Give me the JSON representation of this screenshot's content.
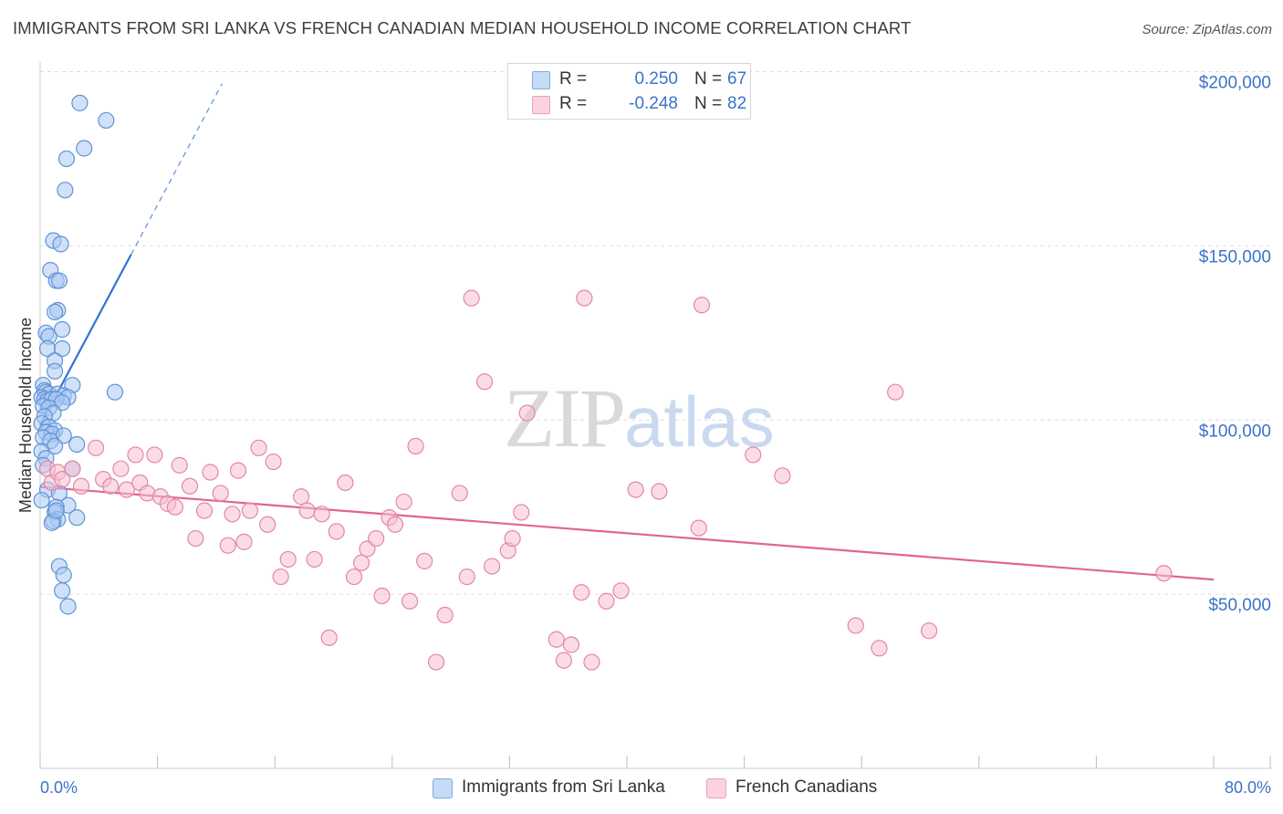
{
  "title": "IMMIGRANTS FROM SRI LANKA VS FRENCH CANADIAN MEDIAN HOUSEHOLD INCOME CORRELATION CHART",
  "source": "Source: ZipAtlas.com",
  "watermark": {
    "zip": "ZIP",
    "atlas": "atlas"
  },
  "legend": {
    "r_label": "R =",
    "n_label": "N =",
    "series": [
      {
        "name": "Immigrants from Sri Lanka",
        "r": "0.250",
        "n": "67",
        "fill": "#a9c9f2",
        "stroke": "#5f93d6"
      },
      {
        "name": "French Canadians",
        "r": "-0.248",
        "n": "82",
        "fill": "#f7bfd1",
        "stroke": "#e386a6"
      }
    ]
  },
  "chart_data": {
    "type": "scatter",
    "title": "IMMIGRANTS FROM SRI LANKA VS FRENCH CANADIAN MEDIAN HOUSEHOLD INCOME CORRELATION CHART",
    "xlabel": "",
    "ylabel": "Median Household Income",
    "xlim": [
      0,
      80
    ],
    "ylim": [
      0,
      210000
    ],
    "x_tick_labels": [
      "0.0%",
      "80.0%"
    ],
    "y_ticks": [
      {
        "value": 50000,
        "label": "$50,000"
      },
      {
        "value": 100000,
        "label": "$100,000"
      },
      {
        "value": 150000,
        "label": "$150,000"
      },
      {
        "value": 200000,
        "label": "$200,000"
      }
    ],
    "series": [
      {
        "name": "Immigrants from Sri Lanka",
        "color": "#5f93d6",
        "fill": "#a9c9f2",
        "trend": {
          "x0": 0,
          "y0": 98500,
          "x1": 6.2,
          "y1": 147500,
          "dash_to_x": 12.4,
          "dash_to_y": 196500,
          "color": "#2f74d0"
        },
        "points": [
          [
            2.7,
            191000
          ],
          [
            4.5,
            186000
          ],
          [
            3.0,
            178000
          ],
          [
            1.8,
            175000
          ],
          [
            1.7,
            166000
          ],
          [
            0.9,
            151500
          ],
          [
            1.4,
            150500
          ],
          [
            0.7,
            143000
          ],
          [
            1.1,
            140000
          ],
          [
            1.3,
            140000
          ],
          [
            1.2,
            131500
          ],
          [
            1.0,
            131000
          ],
          [
            1.5,
            126000
          ],
          [
            0.4,
            125000
          ],
          [
            0.6,
            124000
          ],
          [
            0.5,
            120500
          ],
          [
            1.5,
            120500
          ],
          [
            1.0,
            117000
          ],
          [
            1.0,
            114000
          ],
          [
            0.2,
            110000
          ],
          [
            2.2,
            110000
          ],
          [
            0.3,
            108500
          ],
          [
            0.4,
            108000
          ],
          [
            0.6,
            107500
          ],
          [
            1.2,
            107500
          ],
          [
            1.6,
            107000
          ],
          [
            1.9,
            106500
          ],
          [
            5.1,
            108000
          ],
          [
            0.1,
            106500
          ],
          [
            0.3,
            106000
          ],
          [
            0.5,
            105500
          ],
          [
            0.8,
            106000
          ],
          [
            1.1,
            106000
          ],
          [
            1.5,
            105000
          ],
          [
            0.2,
            104000
          ],
          [
            0.6,
            103500
          ],
          [
            0.9,
            102000
          ],
          [
            0.3,
            101000
          ],
          [
            0.1,
            99000
          ],
          [
            0.6,
            98000
          ],
          [
            1.0,
            97000
          ],
          [
            0.4,
            96500
          ],
          [
            0.8,
            96000
          ],
          [
            0.2,
            95000
          ],
          [
            1.6,
            95500
          ],
          [
            0.7,
            94000
          ],
          [
            1.0,
            92500
          ],
          [
            2.5,
            93000
          ],
          [
            0.1,
            91000
          ],
          [
            0.4,
            89000
          ],
          [
            0.2,
            87000
          ],
          [
            2.2,
            86000
          ],
          [
            0.5,
            80000
          ],
          [
            1.3,
            79000
          ],
          [
            0.1,
            77000
          ],
          [
            1.9,
            75500
          ],
          [
            1.1,
            75000
          ],
          [
            1.0,
            73500
          ],
          [
            2.5,
            72000
          ],
          [
            1.2,
            71500
          ],
          [
            0.9,
            71000
          ],
          [
            1.3,
            58000
          ],
          [
            1.6,
            55500
          ],
          [
            1.5,
            51000
          ],
          [
            1.9,
            46500
          ],
          [
            0.8,
            70500
          ],
          [
            1.1,
            74000
          ]
        ]
      },
      {
        "name": "French Canadians",
        "color": "#e386a6",
        "fill": "#f7bfd1",
        "trend": {
          "x0": 0,
          "y0": 80800,
          "x1": 80,
          "y1": 54200,
          "color": "#e06494"
        },
        "points": [
          [
            0.5,
            86000
          ],
          [
            0.8,
            82000
          ],
          [
            1.2,
            85000
          ],
          [
            1.5,
            83000
          ],
          [
            2.2,
            86000
          ],
          [
            2.8,
            81000
          ],
          [
            3.8,
            92000
          ],
          [
            4.3,
            83000
          ],
          [
            4.8,
            81000
          ],
          [
            5.5,
            86000
          ],
          [
            5.9,
            80000
          ],
          [
            6.5,
            90000
          ],
          [
            6.8,
            82000
          ],
          [
            7.3,
            79000
          ],
          [
            7.8,
            90000
          ],
          [
            8.2,
            78000
          ],
          [
            8.7,
            76000
          ],
          [
            9.2,
            75000
          ],
          [
            9.5,
            87000
          ],
          [
            10.2,
            81000
          ],
          [
            10.6,
            66000
          ],
          [
            11.2,
            74000
          ],
          [
            11.6,
            85000
          ],
          [
            12.3,
            79000
          ],
          [
            12.8,
            64000
          ],
          [
            13.1,
            73000
          ],
          [
            13.5,
            85500
          ],
          [
            13.9,
            65000
          ],
          [
            14.3,
            74000
          ],
          [
            14.9,
            92000
          ],
          [
            15.5,
            70000
          ],
          [
            15.9,
            88000
          ],
          [
            16.4,
            55000
          ],
          [
            16.9,
            60000
          ],
          [
            17.8,
            78000
          ],
          [
            18.2,
            74000
          ],
          [
            18.7,
            60000
          ],
          [
            19.2,
            73000
          ],
          [
            19.7,
            37500
          ],
          [
            20.2,
            68000
          ],
          [
            20.8,
            82000
          ],
          [
            21.4,
            55000
          ],
          [
            21.9,
            59000
          ],
          [
            22.3,
            63000
          ],
          [
            22.9,
            66000
          ],
          [
            23.3,
            49500
          ],
          [
            23.8,
            72000
          ],
          [
            24.2,
            70000
          ],
          [
            24.8,
            76500
          ],
          [
            25.2,
            48000
          ],
          [
            25.6,
            92500
          ],
          [
            26.2,
            59500
          ],
          [
            27.6,
            44000
          ],
          [
            28.6,
            79000
          ],
          [
            29.1,
            55000
          ],
          [
            29.4,
            135000
          ],
          [
            30.3,
            111000
          ],
          [
            30.8,
            58000
          ],
          [
            31.9,
            62500
          ],
          [
            32.2,
            66000
          ],
          [
            32.8,
            73500
          ],
          [
            33.2,
            102000
          ],
          [
            35.2,
            37000
          ],
          [
            35.7,
            31000
          ],
          [
            36.2,
            35500
          ],
          [
            36.9,
            50500
          ],
          [
            37.1,
            135000
          ],
          [
            37.6,
            30500
          ],
          [
            38.6,
            48000
          ],
          [
            39.6,
            51000
          ],
          [
            40.6,
            80000
          ],
          [
            42.2,
            79500
          ],
          [
            44.9,
            69000
          ],
          [
            45.1,
            133000
          ],
          [
            48.6,
            90000
          ],
          [
            50.6,
            84000
          ],
          [
            55.6,
            41000
          ],
          [
            57.2,
            34500
          ],
          [
            58.3,
            108000
          ],
          [
            60.6,
            39500
          ],
          [
            76.6,
            56000
          ],
          [
            27.0,
            30500
          ]
        ]
      }
    ]
  }
}
